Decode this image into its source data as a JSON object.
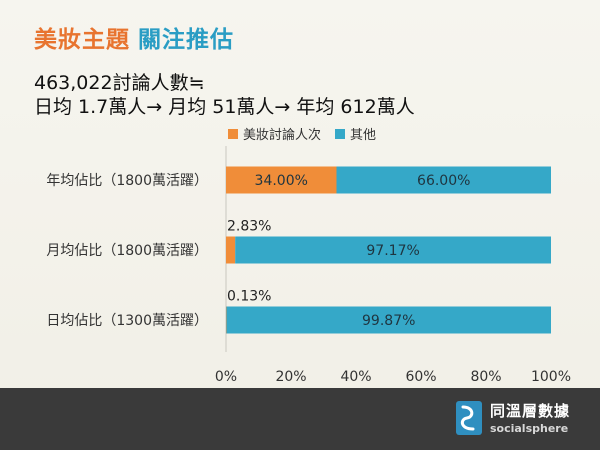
{
  "header": {
    "title_orange": "美妝主題",
    "title_blue": "關注推估",
    "stat_line1": "463,022討論人數≒",
    "stat_line2": "日均 1.7萬人→ 月均 51萬人→ 年均 612萬人"
  },
  "colors": {
    "series1": "#f08d39",
    "series2": "#35a8c8",
    "title_orange": "#e8742f",
    "title_blue": "#2a9dc4"
  },
  "chart_data": {
    "type": "bar",
    "orientation": "horizontal",
    "stacked": true,
    "percent": true,
    "categories": [
      "年均佔比（1800萬活躍）",
      "月均佔比（1800萬活躍）",
      "日均佔比（1300萬活躍）"
    ],
    "series": [
      {
        "name": "美妝討論人次",
        "values": [
          34.0,
          2.83,
          0.13
        ],
        "labels": [
          "34.00%",
          "2.83%",
          "0.13%"
        ]
      },
      {
        "name": "其他",
        "values": [
          66.0,
          97.17,
          99.87
        ],
        "labels": [
          "66.00%",
          "97.17%",
          "99.87%"
        ]
      }
    ],
    "xlim": [
      0,
      100
    ],
    "xticks": [
      "0%",
      "20%",
      "40%",
      "60%",
      "80%",
      "100%"
    ],
    "legend_position": "top",
    "grid": false
  },
  "footer": {
    "brand_cn": "同溫層數據",
    "brand_en": "socialsphere",
    "logo_icon": "socialsphere-logo-icon"
  }
}
